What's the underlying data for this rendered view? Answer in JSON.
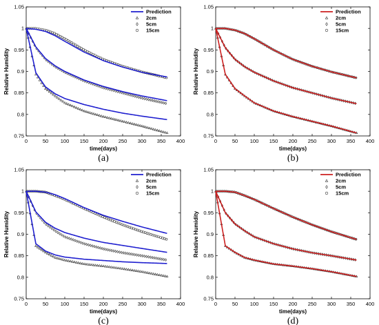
{
  "chart_data": [
    {
      "type": "line",
      "caption": "(a)",
      "prediction_color": "#1f1fcf",
      "xlabel": "time(days)",
      "ylabel": "Relative Humidity",
      "xlim": [
        0,
        400
      ],
      "ylim": [
        0.75,
        1.05
      ],
      "xticks": [
        "0",
        "50",
        "100",
        "150",
        "200",
        "250",
        "300",
        "350",
        "400"
      ],
      "yticks": [
        "0.75",
        "0.8",
        "0.85",
        "0.9",
        "0.95",
        "1",
        "1.05"
      ],
      "legend": [
        "Prediction",
        "2cm",
        "5cm",
        "15cm"
      ],
      "series": [
        {
          "name": "Prediction",
          "marker": "line",
          "x": [
            0,
            25,
            50,
            75,
            100,
            150,
            200,
            250,
            300,
            365
          ],
          "segments": [
            [
              1.0,
              0.897,
              0.864,
              0.848,
              0.837,
              0.823,
              0.812,
              0.803,
              0.796,
              0.788
            ],
            [
              1.0,
              0.957,
              0.93,
              0.913,
              0.9,
              0.88,
              0.865,
              0.853,
              0.843,
              0.832
            ],
            [
              1.0,
              0.998,
              0.993,
              0.983,
              0.97,
              0.945,
              0.925,
              0.91,
              0.898,
              0.887
            ]
          ]
        },
        {
          "name": "2cm",
          "marker": "triangle",
          "x": [
            0,
            25,
            50,
            75,
            100,
            150,
            200,
            250,
            300,
            365
          ],
          "y": [
            1.0,
            0.893,
            0.86,
            0.843,
            0.827,
            0.808,
            0.795,
            0.784,
            0.773,
            0.757
          ]
        },
        {
          "name": "5cm",
          "marker": "diamond",
          "x": [
            0,
            25,
            50,
            75,
            100,
            150,
            200,
            250,
            300,
            365
          ],
          "y": [
            1.0,
            0.955,
            0.928,
            0.911,
            0.898,
            0.878,
            0.862,
            0.85,
            0.838,
            0.825
          ]
        },
        {
          "name": "15cm",
          "marker": "circle",
          "x": [
            0,
            25,
            50,
            75,
            100,
            150,
            200,
            250,
            300,
            365
          ],
          "y": [
            1.0,
            1.0,
            0.996,
            0.988,
            0.976,
            0.95,
            0.928,
            0.912,
            0.899,
            0.885
          ]
        }
      ]
    },
    {
      "type": "line",
      "caption": "(b)",
      "prediction_color": "#cc1f1f",
      "xlabel": "time(days)",
      "ylabel": "Relative Humidity",
      "xlim": [
        0,
        400
      ],
      "ylim": [
        0.75,
        1.05
      ],
      "xticks": [
        "0",
        "50",
        "100",
        "150",
        "200",
        "250",
        "300",
        "350",
        "400"
      ],
      "yticks": [
        "0.75",
        "0.8",
        "0.85",
        "0.9",
        "0.95",
        "1",
        "1.05"
      ],
      "legend": [
        "Prediction",
        "2cm",
        "5cm",
        "15cm"
      ],
      "series": [
        {
          "name": "Prediction",
          "marker": "line",
          "x": [
            0,
            25,
            50,
            75,
            100,
            150,
            200,
            250,
            300,
            365
          ],
          "segments": [
            [
              1.0,
              0.893,
              0.86,
              0.843,
              0.827,
              0.808,
              0.795,
              0.784,
              0.773,
              0.757
            ],
            [
              1.0,
              0.955,
              0.928,
              0.911,
              0.898,
              0.878,
              0.862,
              0.85,
              0.838,
              0.825
            ],
            [
              1.0,
              1.0,
              0.996,
              0.988,
              0.976,
              0.95,
              0.928,
              0.912,
              0.899,
              0.885
            ]
          ]
        },
        {
          "name": "2cm",
          "marker": "triangle",
          "x": [
            0,
            25,
            50,
            75,
            100,
            150,
            200,
            250,
            300,
            365
          ],
          "y": [
            1.0,
            0.893,
            0.86,
            0.843,
            0.827,
            0.808,
            0.795,
            0.784,
            0.773,
            0.757
          ]
        },
        {
          "name": "5cm",
          "marker": "diamond",
          "x": [
            0,
            25,
            50,
            75,
            100,
            150,
            200,
            250,
            300,
            365
          ],
          "y": [
            1.0,
            0.955,
            0.928,
            0.911,
            0.898,
            0.878,
            0.862,
            0.85,
            0.838,
            0.825
          ]
        },
        {
          "name": "15cm",
          "marker": "circle",
          "x": [
            0,
            25,
            50,
            75,
            100,
            150,
            200,
            250,
            300,
            365
          ],
          "y": [
            1.0,
            1.0,
            0.996,
            0.988,
            0.976,
            0.95,
            0.928,
            0.912,
            0.899,
            0.885
          ]
        }
      ]
    },
    {
      "type": "line",
      "caption": "(c)",
      "prediction_color": "#1f1fcf",
      "xlabel": "time(days)",
      "ylabel": "Relative Humidity",
      "xlim": [
        0,
        400
      ],
      "ylim": [
        0.75,
        1.05
      ],
      "xticks": [
        "0",
        "50",
        "100",
        "150",
        "200",
        "250",
        "300",
        "350",
        "400"
      ],
      "yticks": [
        "0.75",
        "0.8",
        "0.85",
        "0.9",
        "0.95",
        "1",
        "1.05"
      ],
      "legend": [
        "Prediction",
        "2cm",
        "5cm",
        "15cm"
      ],
      "series": [
        {
          "name": "Prediction",
          "marker": "line",
          "x": [
            0,
            25,
            50,
            75,
            100,
            150,
            200,
            250,
            300,
            365
          ],
          "segments": [
            [
              1.0,
              0.878,
              0.861,
              0.852,
              0.847,
              0.842,
              0.839,
              0.836,
              0.834,
              0.832
            ],
            [
              1.0,
              0.952,
              0.928,
              0.914,
              0.904,
              0.891,
              0.881,
              0.874,
              0.867,
              0.858
            ],
            [
              1.0,
              1.0,
              0.998,
              0.992,
              0.983,
              0.962,
              0.944,
              0.93,
              0.917,
              0.902
            ]
          ]
        },
        {
          "name": "2cm",
          "marker": "triangle",
          "x": [
            0,
            25,
            50,
            75,
            100,
            150,
            200,
            250,
            300,
            365
          ],
          "y": [
            1.0,
            0.873,
            0.858,
            0.846,
            0.84,
            0.831,
            0.826,
            0.82,
            0.813,
            0.802
          ]
        },
        {
          "name": "5cm",
          "marker": "diamond",
          "x": [
            0,
            25,
            50,
            75,
            100,
            150,
            200,
            250,
            300,
            365
          ],
          "y": [
            1.0,
            0.95,
            0.924,
            0.908,
            0.894,
            0.878,
            0.866,
            0.857,
            0.85,
            0.84
          ]
        },
        {
          "name": "15cm",
          "marker": "circle",
          "x": [
            0,
            25,
            50,
            75,
            100,
            150,
            200,
            250,
            300,
            365
          ],
          "y": [
            1.0,
            1.0,
            0.998,
            0.99,
            0.981,
            0.96,
            0.94,
            0.922,
            0.906,
            0.888
          ]
        }
      ]
    },
    {
      "type": "line",
      "caption": "(d)",
      "prediction_color": "#cc1f1f",
      "xlabel": "time(days)",
      "ylabel": "Relative Humidity",
      "xlim": [
        0,
        400
      ],
      "ylim": [
        0.75,
        1.05
      ],
      "xticks": [
        "0",
        "50",
        "100",
        "150",
        "200",
        "250",
        "300",
        "350",
        "400"
      ],
      "yticks": [
        "0.75",
        "0.8",
        "0.85",
        "0.9",
        "0.95",
        "1",
        "1.05"
      ],
      "legend": [
        "Prediction",
        "2cm",
        "5cm",
        "15cm"
      ],
      "series": [
        {
          "name": "Prediction",
          "marker": "line",
          "x": [
            0,
            25,
            50,
            75,
            100,
            150,
            200,
            250,
            300,
            365
          ],
          "segments": [
            [
              1.0,
              0.873,
              0.858,
              0.846,
              0.84,
              0.831,
              0.826,
              0.82,
              0.813,
              0.802
            ],
            [
              1.0,
              0.95,
              0.924,
              0.908,
              0.894,
              0.878,
              0.866,
              0.857,
              0.85,
              0.84
            ],
            [
              1.0,
              1.0,
              0.998,
              0.99,
              0.981,
              0.96,
              0.94,
              0.922,
              0.906,
              0.888
            ]
          ]
        },
        {
          "name": "2cm",
          "marker": "triangle",
          "x": [
            0,
            25,
            50,
            75,
            100,
            150,
            200,
            250,
            300,
            365
          ],
          "y": [
            1.0,
            0.873,
            0.858,
            0.846,
            0.84,
            0.831,
            0.826,
            0.82,
            0.813,
            0.802
          ]
        },
        {
          "name": "5cm",
          "marker": "diamond",
          "x": [
            0,
            25,
            50,
            75,
            100,
            150,
            200,
            250,
            300,
            365
          ],
          "y": [
            1.0,
            0.95,
            0.924,
            0.908,
            0.894,
            0.878,
            0.866,
            0.857,
            0.85,
            0.84
          ]
        },
        {
          "name": "15cm",
          "marker": "circle",
          "x": [
            0,
            25,
            50,
            75,
            100,
            150,
            200,
            250,
            300,
            365
          ],
          "y": [
            1.0,
            1.0,
            0.998,
            0.99,
            0.981,
            0.96,
            0.94,
            0.922,
            0.906,
            0.888
          ]
        }
      ]
    }
  ]
}
